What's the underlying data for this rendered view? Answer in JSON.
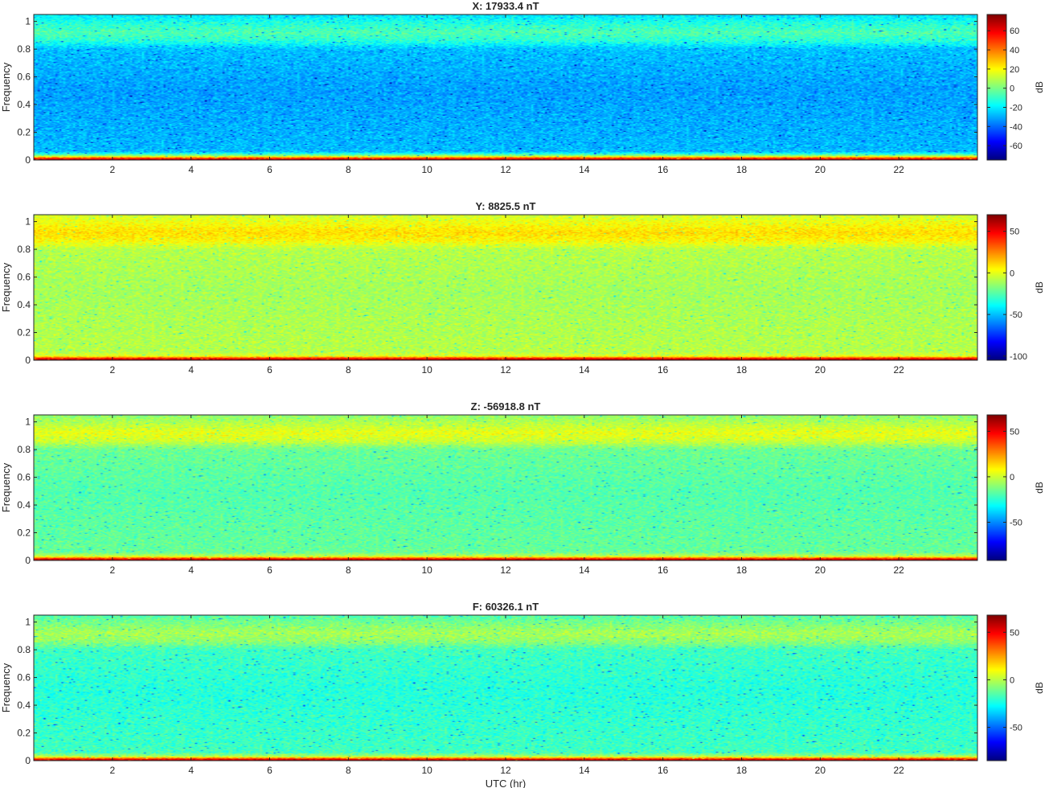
{
  "figure": {
    "xlabel": "UTC (hr)"
  },
  "chart_data": [
    {
      "type": "heatmap",
      "title": "X: 17933.4 nT",
      "xlabel": "",
      "ylabel": "Frequency",
      "xlim": [
        0,
        24
      ],
      "ylim": [
        0,
        1.05
      ],
      "xticks": [
        2,
        4,
        6,
        8,
        10,
        12,
        14,
        16,
        18,
        20,
        22
      ],
      "yticks": [
        0,
        0.2,
        0.4,
        0.6,
        0.8,
        1
      ],
      "ytick_labels": [
        "0",
        "0.2",
        "0.4",
        "0.6",
        "0.8",
        "1"
      ],
      "colorbar": {
        "label": "dB",
        "range": [
          -75,
          77
        ],
        "ticks": [
          60,
          40,
          20,
          0,
          -20,
          -40,
          -60
        ]
      },
      "colormap": "jet",
      "level_profile_db": [
        {
          "frequency": 0.0,
          "level": 75
        },
        {
          "frequency": 0.015,
          "level": 45
        },
        {
          "frequency": 0.03,
          "level": 5
        },
        {
          "frequency": 0.06,
          "level": -28
        },
        {
          "frequency": 0.5,
          "level": -32
        },
        {
          "frequency": 0.8,
          "level": -27
        },
        {
          "frequency": 0.86,
          "level": -12
        },
        {
          "frequency": 0.92,
          "level": -6
        },
        {
          "frequency": 0.98,
          "level": -12
        },
        {
          "frequency": 1.05,
          "level": -22
        }
      ],
      "noise_db": 15
    },
    {
      "type": "heatmap",
      "title": "Y: 8825.5 nT",
      "xlabel": "",
      "ylabel": "Frequency",
      "xlim": [
        0,
        24
      ],
      "ylim": [
        0,
        1.05
      ],
      "xticks": [
        2,
        4,
        6,
        8,
        10,
        12,
        14,
        16,
        18,
        20,
        22
      ],
      "yticks": [
        0,
        0.2,
        0.4,
        0.6,
        0.8,
        1
      ],
      "ytick_labels": [
        "0",
        "0.2",
        "0.4",
        "0.6",
        "0.8",
        "1"
      ],
      "colorbar": {
        "label": "dB",
        "range": [
          -105,
          70
        ],
        "ticks": [
          50,
          0,
          -50,
          -100
        ]
      },
      "colormap": "jet",
      "level_profile_db": [
        {
          "frequency": 0.0,
          "level": 70
        },
        {
          "frequency": 0.015,
          "level": 40
        },
        {
          "frequency": 0.03,
          "level": 0
        },
        {
          "frequency": 0.06,
          "level": -8
        },
        {
          "frequency": 0.5,
          "level": -11
        },
        {
          "frequency": 0.8,
          "level": -8
        },
        {
          "frequency": 0.86,
          "level": 5
        },
        {
          "frequency": 0.92,
          "level": 10
        },
        {
          "frequency": 0.98,
          "level": 4
        },
        {
          "frequency": 1.05,
          "level": -4
        }
      ],
      "noise_db": 14
    },
    {
      "type": "heatmap",
      "title": "Z: -56918.8 nT",
      "xlabel": "",
      "ylabel": "Frequency",
      "xlim": [
        0,
        24
      ],
      "ylim": [
        0,
        1.05
      ],
      "xticks": [
        2,
        4,
        6,
        8,
        10,
        12,
        14,
        16,
        18,
        20,
        22
      ],
      "yticks": [
        0,
        0.2,
        0.4,
        0.6,
        0.8,
        1
      ],
      "ytick_labels": [
        "0",
        "0.2",
        "0.4",
        "0.6",
        "0.8",
        "1"
      ],
      "colorbar": {
        "label": "dB",
        "range": [
          -92,
          68
        ],
        "ticks": [
          50,
          0,
          -50
        ]
      },
      "colormap": "jet",
      "level_profile_db": [
        {
          "frequency": 0.0,
          "level": 68
        },
        {
          "frequency": 0.015,
          "level": 38
        },
        {
          "frequency": 0.03,
          "level": 0
        },
        {
          "frequency": 0.06,
          "level": -16
        },
        {
          "frequency": 0.5,
          "level": -19
        },
        {
          "frequency": 0.8,
          "level": -15
        },
        {
          "frequency": 0.86,
          "level": 0
        },
        {
          "frequency": 0.92,
          "level": 5
        },
        {
          "frequency": 0.98,
          "level": -2
        },
        {
          "frequency": 1.05,
          "level": -10
        }
      ],
      "noise_db": 13
    },
    {
      "type": "heatmap",
      "title": "F: 60326.1 nT",
      "xlabel": "UTC (hr)",
      "ylabel": "Frequency",
      "xlim": [
        0,
        24
      ],
      "ylim": [
        0,
        1.05
      ],
      "xticks": [
        2,
        4,
        6,
        8,
        10,
        12,
        14,
        16,
        18,
        20,
        22
      ],
      "yticks": [
        0,
        0.2,
        0.4,
        0.6,
        0.8,
        1
      ],
      "ytick_labels": [
        "0",
        "0.2",
        "0.4",
        "0.6",
        "0.8",
        "1"
      ],
      "colorbar": {
        "label": "dB",
        "range": [
          -85,
          68
        ],
        "ticks": [
          50,
          0,
          -50
        ]
      },
      "colormap": "jet",
      "level_profile_db": [
        {
          "frequency": 0.0,
          "level": 68
        },
        {
          "frequency": 0.015,
          "level": 38
        },
        {
          "frequency": 0.03,
          "level": 0
        },
        {
          "frequency": 0.06,
          "level": -18
        },
        {
          "frequency": 0.5,
          "level": -22
        },
        {
          "frequency": 0.8,
          "level": -18
        },
        {
          "frequency": 0.86,
          "level": -6
        },
        {
          "frequency": 0.92,
          "level": -2
        },
        {
          "frequency": 0.98,
          "level": -8
        },
        {
          "frequency": 1.05,
          "level": -15
        }
      ],
      "noise_db": 14
    }
  ]
}
